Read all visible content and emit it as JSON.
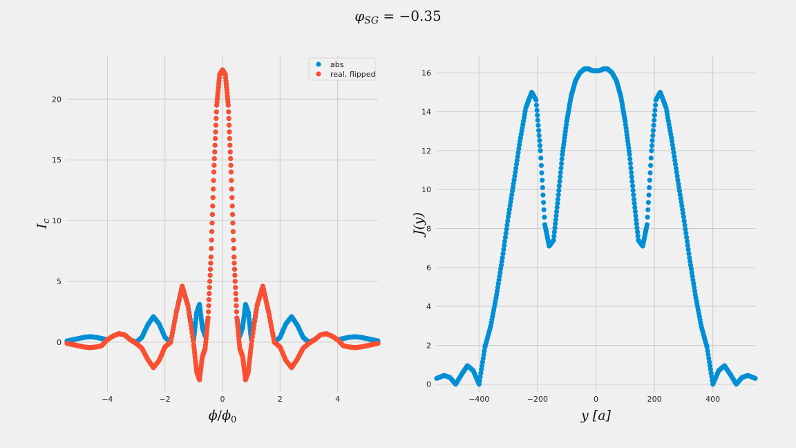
{
  "figure": {
    "suptitle": "φSG = −0.35",
    "suptitle_parts": {
      "symbol": "φ",
      "subscript": "SG",
      "equation": " = −0.35"
    }
  },
  "colors": {
    "blue": "#008fd5",
    "red": "#fc4f30",
    "background": "#f0f0f0",
    "grid": "#cbcbcb"
  },
  "chart_data": [
    {
      "type": "scatter",
      "title": "",
      "xlabel": "ϕ/ϕ0",
      "xlabel_parts": {
        "num": "ϕ",
        "den": "ϕ",
        "den_sub": "0"
      },
      "ylabel": "Ic",
      "ylabel_parts": {
        "main": "I",
        "sub": "c"
      },
      "xlim": [
        -5.4,
        5.4
      ],
      "ylim": [
        -4.1,
        23.6
      ],
      "xticks": [
        -4,
        -2,
        0,
        2,
        4
      ],
      "xtick_labels": [
        "−4",
        "−2",
        "0",
        "2",
        "4"
      ],
      "yticks": [
        0,
        5,
        10,
        15,
        20
      ],
      "ytick_labels": [
        "0",
        "5",
        "10",
        "15",
        "20"
      ],
      "grid": true,
      "legend": {
        "placement": "top-right",
        "entries": [
          "abs",
          "real, flipped"
        ]
      },
      "series": [
        {
          "name": "abs",
          "color": "#008fd5",
          "x": [
            -5.4,
            -5.2,
            -5.0,
            -4.8,
            -4.6,
            -4.4,
            -4.2,
            -4.0,
            -3.8,
            -3.6,
            -3.4,
            -3.2,
            -3.0,
            -2.8,
            -2.6,
            -2.4,
            -2.2,
            -2.0,
            -1.8,
            -1.6,
            -1.4,
            -1.2,
            -1.0,
            -0.9,
            -0.8,
            -0.7,
            -0.6,
            -0.5,
            -0.4,
            -0.3,
            -0.2,
            -0.1,
            0.0,
            0.1,
            0.2,
            0.3,
            0.4,
            0.5,
            0.6,
            0.7,
            0.8,
            0.9,
            1.0,
            1.2,
            1.4,
            1.6,
            1.8,
            2.0,
            2.2,
            2.4,
            2.6,
            2.8,
            3.0,
            3.2,
            3.4,
            3.6,
            3.8,
            4.0,
            4.2,
            4.4,
            4.6,
            4.8,
            5.0,
            5.2,
            5.4
          ],
          "y": [
            0.1,
            0.2,
            0.3,
            0.4,
            0.45,
            0.4,
            0.3,
            0.2,
            0.5,
            0.7,
            0.6,
            0.2,
            0.0,
            0.4,
            1.4,
            2.1,
            1.5,
            0.4,
            0.0,
            2.5,
            4.6,
            3.0,
            0.2,
            2.4,
            3.1,
            1.2,
            0.5,
            2.0,
            7.0,
            14.0,
            19.5,
            22.0,
            22.4,
            22.0,
            19.5,
            14.0,
            7.0,
            2.0,
            0.5,
            1.2,
            3.1,
            2.4,
            0.2,
            3.0,
            4.6,
            2.5,
            0.0,
            0.4,
            1.5,
            2.1,
            1.4,
            0.4,
            0.0,
            0.2,
            0.6,
            0.7,
            0.5,
            0.2,
            0.3,
            0.4,
            0.45,
            0.4,
            0.3,
            0.2,
            0.1
          ]
        },
        {
          "name": "real, flipped",
          "color": "#fc4f30",
          "x": [
            -5.4,
            -5.2,
            -5.0,
            -4.8,
            -4.6,
            -4.4,
            -4.2,
            -4.0,
            -3.8,
            -3.6,
            -3.4,
            -3.2,
            -3.0,
            -2.8,
            -2.6,
            -2.4,
            -2.2,
            -2.0,
            -1.8,
            -1.6,
            -1.4,
            -1.2,
            -1.0,
            -0.9,
            -0.8,
            -0.7,
            -0.6,
            -0.5,
            -0.4,
            -0.3,
            -0.2,
            -0.1,
            0.0,
            0.1,
            0.2,
            0.3,
            0.4,
            0.5,
            0.6,
            0.7,
            0.8,
            0.9,
            1.0,
            1.2,
            1.4,
            1.6,
            1.8,
            2.0,
            2.2,
            2.4,
            2.6,
            2.8,
            3.0,
            3.2,
            3.4,
            3.6,
            3.8,
            4.0,
            4.2,
            4.4,
            4.6,
            4.8,
            5.0,
            5.2,
            5.4
          ],
          "y": [
            -0.1,
            -0.2,
            -0.3,
            -0.4,
            -0.45,
            -0.4,
            -0.3,
            0.2,
            0.5,
            0.7,
            0.6,
            0.2,
            -0.1,
            -0.5,
            -1.4,
            -2.1,
            -1.5,
            -0.4,
            0.0,
            2.5,
            4.6,
            3.0,
            -0.2,
            -2.4,
            -3.1,
            -1.2,
            -0.5,
            2.0,
            7.0,
            14.0,
            19.5,
            22.0,
            22.4,
            22.0,
            19.5,
            14.0,
            7.0,
            2.0,
            -0.5,
            -1.2,
            -3.1,
            -2.4,
            -0.2,
            3.0,
            4.6,
            2.5,
            0.0,
            -0.4,
            -1.5,
            -2.1,
            -1.4,
            -0.5,
            -0.1,
            0.2,
            0.6,
            0.7,
            0.5,
            0.2,
            -0.3,
            -0.4,
            -0.45,
            -0.4,
            -0.3,
            -0.2,
            -0.1
          ]
        }
      ]
    },
    {
      "type": "scatter",
      "title": "",
      "xlabel": "y [a]",
      "xlabel_parts": {
        "main": "y",
        "unit": " [a]"
      },
      "ylabel": "J(y)",
      "xlim": [
        -545,
        545
      ],
      "ylim": [
        -0.4,
        16.9
      ],
      "xticks": [
        -400,
        -200,
        0,
        200,
        400
      ],
      "xtick_labels": [
        "−400",
        "−200",
        "0",
        "200",
        "400"
      ],
      "yticks": [
        0,
        2,
        4,
        6,
        8,
        10,
        12,
        14,
        16
      ],
      "ytick_labels": [
        "0",
        "2",
        "4",
        "6",
        "8",
        "10",
        "12",
        "14",
        "16"
      ],
      "grid": true,
      "series": [
        {
          "color": "#008fd5",
          "x": [
            -545,
            -520,
            -500,
            -480,
            -460,
            -440,
            -420,
            -400,
            -380,
            -360,
            -340,
            -320,
            -300,
            -280,
            -260,
            -240,
            -220,
            -205,
            -190,
            -175,
            -160,
            -145,
            -130,
            -115,
            -100,
            -85,
            -70,
            -55,
            -40,
            -25,
            -10,
            0,
            10,
            25,
            40,
            55,
            70,
            85,
            100,
            115,
            130,
            145,
            160,
            175,
            190,
            205,
            220,
            240,
            260,
            280,
            300,
            320,
            340,
            360,
            380,
            400,
            420,
            440,
            460,
            480,
            500,
            520,
            545
          ],
          "y": [
            0.3,
            0.45,
            0.35,
            0.0,
            0.5,
            0.95,
            0.7,
            0.0,
            1.9,
            3.0,
            4.6,
            6.5,
            8.6,
            10.5,
            12.5,
            14.2,
            15.0,
            14.6,
            12.0,
            8.2,
            7.1,
            7.4,
            9.5,
            11.8,
            13.5,
            14.8,
            15.6,
            16.0,
            16.2,
            16.2,
            16.1,
            16.1,
            16.1,
            16.2,
            16.2,
            16.0,
            15.6,
            14.8,
            13.5,
            11.8,
            9.5,
            7.4,
            7.1,
            8.2,
            12.0,
            14.6,
            15.0,
            14.2,
            12.5,
            10.5,
            8.6,
            6.5,
            4.6,
            3.0,
            1.9,
            0.0,
            0.7,
            0.95,
            0.5,
            0.0,
            0.35,
            0.45,
            0.3
          ]
        }
      ]
    }
  ]
}
